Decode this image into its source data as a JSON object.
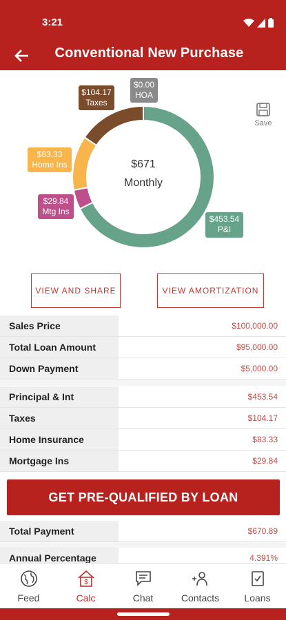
{
  "status": {
    "time": "3:21"
  },
  "header": {
    "title": "Conventional New Purchase"
  },
  "chart_data": {
    "type": "pie",
    "center_amount": "$671",
    "center_label": "Monthly",
    "slices": [
      {
        "name": "P&I",
        "label": "$453.54",
        "value": 453.54,
        "color": "#67a28a"
      },
      {
        "name": "Mtg Ins",
        "label": "$29.84",
        "value": 29.84,
        "color": "#bd4f8a"
      },
      {
        "name": "Home Ins",
        "label": "$83.33",
        "value": 83.33,
        "color": "#f8b54b"
      },
      {
        "name": "Taxes",
        "label": "$104.17",
        "value": 104.17,
        "color": "#7b4c2c"
      },
      {
        "name": "HOA",
        "label": "$0.00",
        "value": 0.0,
        "color": "#8a8a8a"
      }
    ]
  },
  "save_label": "Save",
  "actions": {
    "share": "VIEW AND SHARE",
    "amortization": "VIEW AMORTIZATION"
  },
  "loan_rows": [
    {
      "label": "Sales Price",
      "value": "$100,000.00"
    },
    {
      "label": "Total Loan Amount",
      "value": "$95,000.00"
    },
    {
      "label": "Down Payment",
      "value": "$5,000.00"
    }
  ],
  "payment_rows": [
    {
      "label": "Principal & Int",
      "value": "$453.54"
    },
    {
      "label": "Taxes",
      "value": "$104.17"
    },
    {
      "label": "Home Insurance",
      "value": "$83.33"
    },
    {
      "label": "Mortgage Ins",
      "value": "$29.84"
    }
  ],
  "cta_label": "GET PRE-QUALIFIED BY LOAN",
  "total_rows": [
    {
      "label": "Total Payment",
      "value": "$670.89"
    },
    {
      "label": "Annual Percentage Rate",
      "value": "4.391%"
    }
  ],
  "tabs": [
    {
      "label": "Feed",
      "icon": "globe-icon"
    },
    {
      "label": "Calc",
      "icon": "calc-house-icon"
    },
    {
      "label": "Chat",
      "icon": "chat-icon"
    },
    {
      "label": "Contacts",
      "icon": "contacts-icon"
    },
    {
      "label": "Loans",
      "icon": "loans-icon"
    }
  ],
  "colors": {
    "brand": "#b8221e",
    "accent_text": "#c44a44"
  }
}
